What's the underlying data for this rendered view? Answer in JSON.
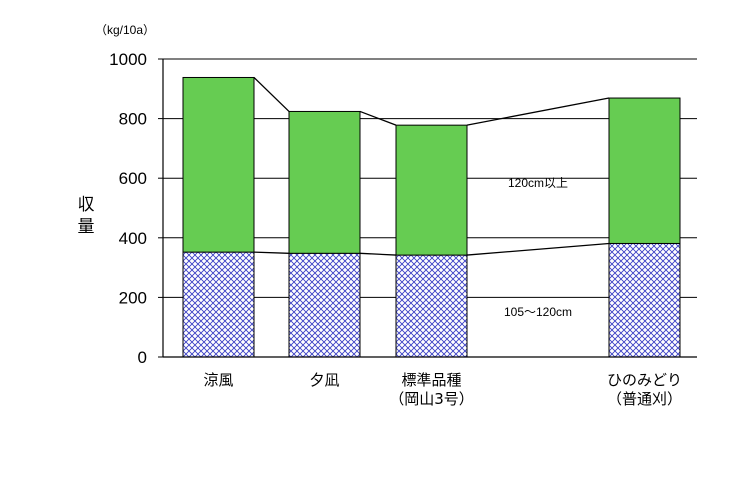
{
  "chart_data": {
    "type": "bar",
    "stacked": true,
    "unit": "（kg/10a）",
    "ylabel": "収量",
    "ylim": [
      0,
      1000
    ],
    "yticks": [
      "0",
      "200",
      "400",
      "600",
      "800",
      "1000"
    ],
    "grid": true,
    "categories": [
      [
        "涼風"
      ],
      [
        "夕凪"
      ],
      [
        "標準品種",
        "（岡山3号）"
      ],
      [
        "ひのみどり",
        "（普通刈）"
      ]
    ],
    "series": [
      {
        "name": "105～120cm",
        "color": "#3a3fc4",
        "pattern": "crosshatch",
        "values": [
          352,
          348,
          342,
          381
        ]
      },
      {
        "name": "120cm以上",
        "color": "#66cc52",
        "values": [
          586,
          476,
          436,
          488
        ]
      }
    ],
    "totals": [
      938,
      824,
      778,
      869
    ]
  }
}
